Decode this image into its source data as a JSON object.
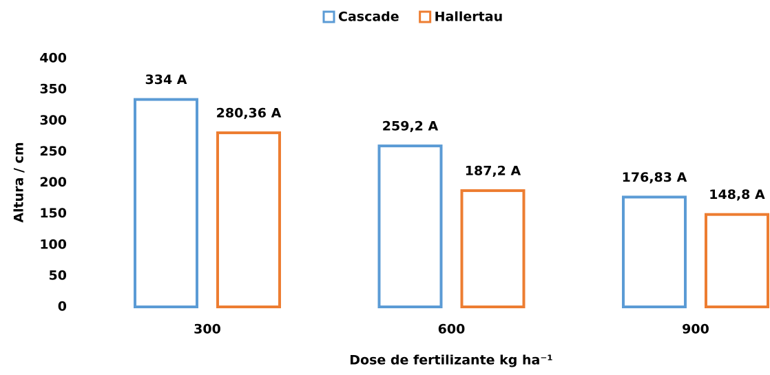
{
  "chart_data": {
    "type": "bar",
    "x_label": "Dose de fertilizante kg ha⁻¹",
    "y_label": "Altura / cm",
    "categories": [
      "300",
      "600",
      "900"
    ],
    "series": [
      {
        "name": "Cascade",
        "color": "#5b9bd5",
        "values": [
          334,
          259.2,
          176.83
        ],
        "value_labels": [
          "334 A",
          "259,2 A",
          "176,83 A"
        ]
      },
      {
        "name": "Hallertau",
        "color": "#ed7d31",
        "values": [
          280.36,
          187.2,
          148.8
        ],
        "value_labels": [
          "280,36 A",
          "187,2 A",
          "148,8 A"
        ]
      }
    ],
    "ylim": [
      0,
      400
    ],
    "yticks": [
      0,
      50,
      100,
      150,
      200,
      250,
      300,
      350,
      400
    ],
    "grid": false,
    "legend": "top"
  }
}
